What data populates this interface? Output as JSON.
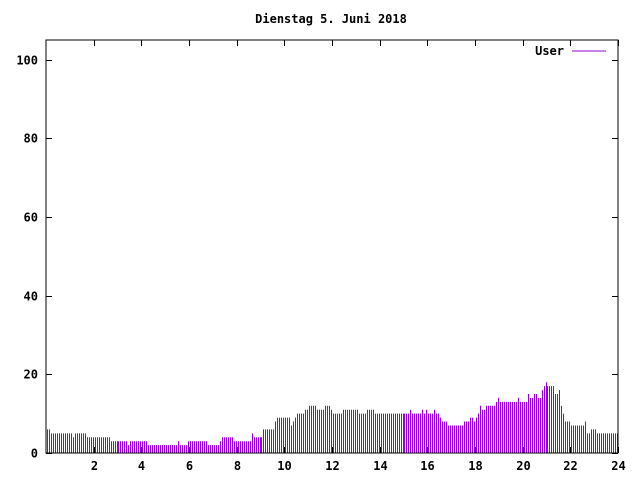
{
  "chart_data": {
    "type": "bar",
    "title": "Dienstag 5. Juni 2018",
    "xlabel": "",
    "ylabel": "",
    "xlim": [
      0,
      24
    ],
    "ylim": [
      0,
      105
    ],
    "x_ticks": [
      "2",
      "4",
      "6",
      "8",
      "10",
      "12",
      "14",
      "16",
      "18",
      "20",
      "22",
      "24"
    ],
    "y_ticks": [
      "0",
      "20",
      "40",
      "60",
      "80",
      "100"
    ],
    "grid": false,
    "legend_position": "top-right",
    "x_step_hours": 0.0833333,
    "series": [
      {
        "name": "User",
        "color": "#9400d3",
        "values": [
          6,
          6,
          5,
          5,
          5,
          5,
          5,
          5,
          5,
          5,
          5,
          5,
          5,
          4,
          5,
          5,
          5,
          5,
          5,
          5,
          4,
          4,
          4,
          4,
          4,
          4,
          4,
          4,
          4,
          4,
          4,
          4,
          3,
          3,
          3,
          3,
          3,
          3,
          3,
          3,
          3,
          2,
          3,
          3,
          3,
          3,
          3,
          3,
          3,
          3,
          3,
          2,
          2,
          2,
          2,
          2,
          2,
          2,
          2,
          2,
          2,
          2,
          2,
          2,
          2,
          2,
          3,
          2,
          2,
          2,
          2,
          3,
          3,
          3,
          3,
          3,
          3,
          3,
          3,
          3,
          3,
          2,
          2,
          2,
          2,
          2,
          2,
          3,
          4,
          4,
          4,
          4,
          4,
          4,
          3,
          3,
          3,
          3,
          3,
          3,
          3,
          3,
          3,
          5,
          4,
          4,
          4,
          4,
          4,
          6,
          6,
          6,
          6,
          6,
          6,
          8,
          9,
          9,
          9,
          9,
          9,
          9,
          9,
          7,
          8,
          9,
          10,
          10,
          10,
          10,
          11,
          11,
          12,
          12,
          12,
          12,
          11,
          11,
          11,
          11,
          12,
          12,
          12,
          11,
          10,
          10,
          10,
          10,
          10,
          11,
          11,
          11,
          11,
          11,
          11,
          11,
          11,
          10,
          10,
          10,
          10,
          11,
          11,
          11,
          11,
          10,
          10,
          10,
          10,
          10,
          10,
          10,
          10,
          10,
          10,
          10,
          10,
          10,
          10,
          10,
          10,
          10,
          10,
          11,
          10,
          10,
          10,
          10,
          10,
          11,
          10,
          11,
          10,
          10,
          10,
          11,
          10,
          10,
          9,
          8,
          8,
          8,
          7,
          7,
          7,
          7,
          7,
          7,
          7,
          7,
          8,
          8,
          8,
          9,
          9,
          8,
          9,
          10,
          12,
          11,
          11,
          12,
          12,
          12,
          12,
          12,
          13,
          14,
          13,
          13,
          13,
          13,
          13,
          13,
          13,
          13,
          13,
          14,
          13,
          13,
          13,
          13,
          15,
          14,
          14,
          15,
          15,
          14,
          14,
          16,
          17,
          18,
          17,
          17,
          17,
          17,
          15,
          15,
          16,
          12,
          10,
          8,
          8,
          8,
          7,
          7,
          7,
          7,
          7,
          7,
          7,
          8,
          5,
          5,
          6,
          6,
          6,
          5,
          5,
          5,
          5,
          5,
          5,
          5,
          5,
          5,
          5,
          5
        ]
      }
    ]
  }
}
